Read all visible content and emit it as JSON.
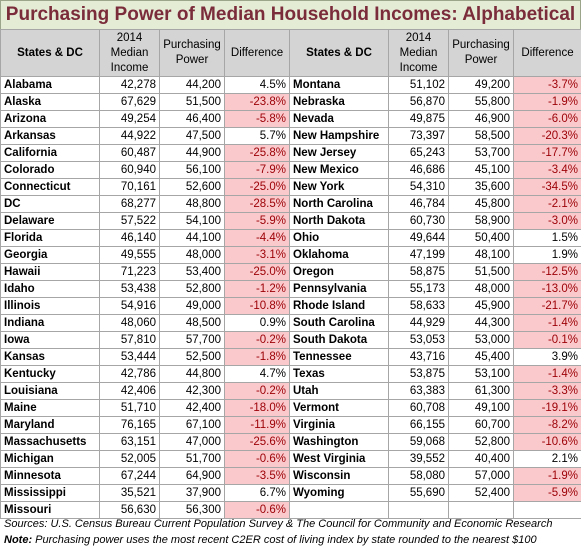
{
  "title": "Purchasing Power of Median Household Incomes: Alphabetical",
  "headers": {
    "state": "States & DC",
    "income": "2014 Median Income",
    "power": "Purchasing Power",
    "diff": "Difference"
  },
  "left": [
    {
      "state": "Alabama",
      "income": "42,278",
      "power": "44,200",
      "diff": "4.5%",
      "neg": false
    },
    {
      "state": "Alaska",
      "income": "67,629",
      "power": "51,500",
      "diff": "-23.8%",
      "neg": true
    },
    {
      "state": "Arizona",
      "income": "49,254",
      "power": "46,400",
      "diff": "-5.8%",
      "neg": true
    },
    {
      "state": "Arkansas",
      "income": "44,922",
      "power": "47,500",
      "diff": "5.7%",
      "neg": false
    },
    {
      "state": "California",
      "income": "60,487",
      "power": "44,900",
      "diff": "-25.8%",
      "neg": true
    },
    {
      "state": "Colorado",
      "income": "60,940",
      "power": "56,100",
      "diff": "-7.9%",
      "neg": true
    },
    {
      "state": "Connecticut",
      "income": "70,161",
      "power": "52,600",
      "diff": "-25.0%",
      "neg": true
    },
    {
      "state": "DC",
      "income": "68,277",
      "power": "48,800",
      "diff": "-28.5%",
      "neg": true
    },
    {
      "state": "Delaware",
      "income": "57,522",
      "power": "54,100",
      "diff": "-5.9%",
      "neg": true
    },
    {
      "state": "Florida",
      "income": "46,140",
      "power": "44,100",
      "diff": "-4.4%",
      "neg": true
    },
    {
      "state": "Georgia",
      "income": "49,555",
      "power": "48,000",
      "diff": "-3.1%",
      "neg": true
    },
    {
      "state": "Hawaii",
      "income": "71,223",
      "power": "53,400",
      "diff": "-25.0%",
      "neg": true
    },
    {
      "state": "Idaho",
      "income": "53,438",
      "power": "52,800",
      "diff": "-1.2%",
      "neg": true
    },
    {
      "state": "Illinois",
      "income": "54,916",
      "power": "49,000",
      "diff": "-10.8%",
      "neg": true
    },
    {
      "state": "Indiana",
      "income": "48,060",
      "power": "48,500",
      "diff": "0.9%",
      "neg": false
    },
    {
      "state": "Iowa",
      "income": "57,810",
      "power": "57,700",
      "diff": "-0.2%",
      "neg": true
    },
    {
      "state": "Kansas",
      "income": "53,444",
      "power": "52,500",
      "diff": "-1.8%",
      "neg": true
    },
    {
      "state": "Kentucky",
      "income": "42,786",
      "power": "44,800",
      "diff": "4.7%",
      "neg": false
    },
    {
      "state": "Louisiana",
      "income": "42,406",
      "power": "42,300",
      "diff": "-0.2%",
      "neg": true
    },
    {
      "state": "Maine",
      "income": "51,710",
      "power": "42,400",
      "diff": "-18.0%",
      "neg": true
    },
    {
      "state": "Maryland",
      "income": "76,165",
      "power": "67,100",
      "diff": "-11.9%",
      "neg": true
    },
    {
      "state": "Massachusetts",
      "income": "63,151",
      "power": "47,000",
      "diff": "-25.6%",
      "neg": true
    },
    {
      "state": "Michigan",
      "income": "52,005",
      "power": "51,700",
      "diff": "-0.6%",
      "neg": true
    },
    {
      "state": "Minnesota",
      "income": "67,244",
      "power": "64,900",
      "diff": "-3.5%",
      "neg": true
    },
    {
      "state": "Mississippi",
      "income": "35,521",
      "power": "37,900",
      "diff": "6.7%",
      "neg": false
    },
    {
      "state": "Missouri",
      "income": "56,630",
      "power": "56,300",
      "diff": "-0.6%",
      "neg": true
    }
  ],
  "right": [
    {
      "state": "Montana",
      "income": "51,102",
      "power": "49,200",
      "diff": "-3.7%",
      "neg": true
    },
    {
      "state": "Nebraska",
      "income": "56,870",
      "power": "55,800",
      "diff": "-1.9%",
      "neg": true
    },
    {
      "state": "Nevada",
      "income": "49,875",
      "power": "46,900",
      "diff": "-6.0%",
      "neg": true
    },
    {
      "state": "New Hampshire",
      "income": "73,397",
      "power": "58,500",
      "diff": "-20.3%",
      "neg": true
    },
    {
      "state": "New Jersey",
      "income": "65,243",
      "power": "53,700",
      "diff": "-17.7%",
      "neg": true
    },
    {
      "state": "New Mexico",
      "income": "46,686",
      "power": "45,100",
      "diff": "-3.4%",
      "neg": true
    },
    {
      "state": "New York",
      "income": "54,310",
      "power": "35,600",
      "diff": "-34.5%",
      "neg": true
    },
    {
      "state": "North Carolina",
      "income": "46,784",
      "power": "45,800",
      "diff": "-2.1%",
      "neg": true
    },
    {
      "state": "North Dakota",
      "income": "60,730",
      "power": "58,900",
      "diff": "-3.0%",
      "neg": true
    },
    {
      "state": "Ohio",
      "income": "49,644",
      "power": "50,400",
      "diff": "1.5%",
      "neg": false
    },
    {
      "state": "Oklahoma",
      "income": "47,199",
      "power": "48,100",
      "diff": "1.9%",
      "neg": false
    },
    {
      "state": "Oregon",
      "income": "58,875",
      "power": "51,500",
      "diff": "-12.5%",
      "neg": true
    },
    {
      "state": "Pennsylvania",
      "income": "55,173",
      "power": "48,000",
      "diff": "-13.0%",
      "neg": true
    },
    {
      "state": "Rhode Island",
      "income": "58,633",
      "power": "45,900",
      "diff": "-21.7%",
      "neg": true
    },
    {
      "state": "South Carolina",
      "income": "44,929",
      "power": "44,300",
      "diff": "-1.4%",
      "neg": true
    },
    {
      "state": "South Dakota",
      "income": "53,053",
      "power": "53,000",
      "diff": "-0.1%",
      "neg": true
    },
    {
      "state": "Tennessee",
      "income": "43,716",
      "power": "45,400",
      "diff": "3.9%",
      "neg": false
    },
    {
      "state": "Texas",
      "income": "53,875",
      "power": "53,100",
      "diff": "-1.4%",
      "neg": true
    },
    {
      "state": "Utah",
      "income": "63,383",
      "power": "61,300",
      "diff": "-3.3%",
      "neg": true
    },
    {
      "state": "Vermont",
      "income": "60,708",
      "power": "49,100",
      "diff": "-19.1%",
      "neg": true
    },
    {
      "state": "Virginia",
      "income": "66,155",
      "power": "60,700",
      "diff": "-8.2%",
      "neg": true
    },
    {
      "state": "Washington",
      "income": "59,068",
      "power": "52,800",
      "diff": "-10.6%",
      "neg": true
    },
    {
      "state": "West Virginia",
      "income": "39,552",
      "power": "40,400",
      "diff": "2.1%",
      "neg": false
    },
    {
      "state": "Wisconsin",
      "income": "58,080",
      "power": "57,000",
      "diff": "-1.9%",
      "neg": true
    },
    {
      "state": "Wyoming",
      "income": "55,690",
      "power": "52,400",
      "diff": "-5.9%",
      "neg": true
    }
  ],
  "notes": {
    "sources_label": "Sources:",
    "sources_text": "U.S. Census Bureau Current Population Survey & The Council for Community and Economic Research",
    "note_label": "Note:",
    "note_text": "Purchasing power uses the most recent C2ER cost of living index by state rounded to the nearest $100"
  },
  "colors": {
    "title_bg": "#e4ecd6",
    "title_text": "#7b2c3a",
    "header_bg": "#d4d4d4",
    "negative_bg": "#f9c9cc",
    "negative_text": "#9c0006"
  }
}
